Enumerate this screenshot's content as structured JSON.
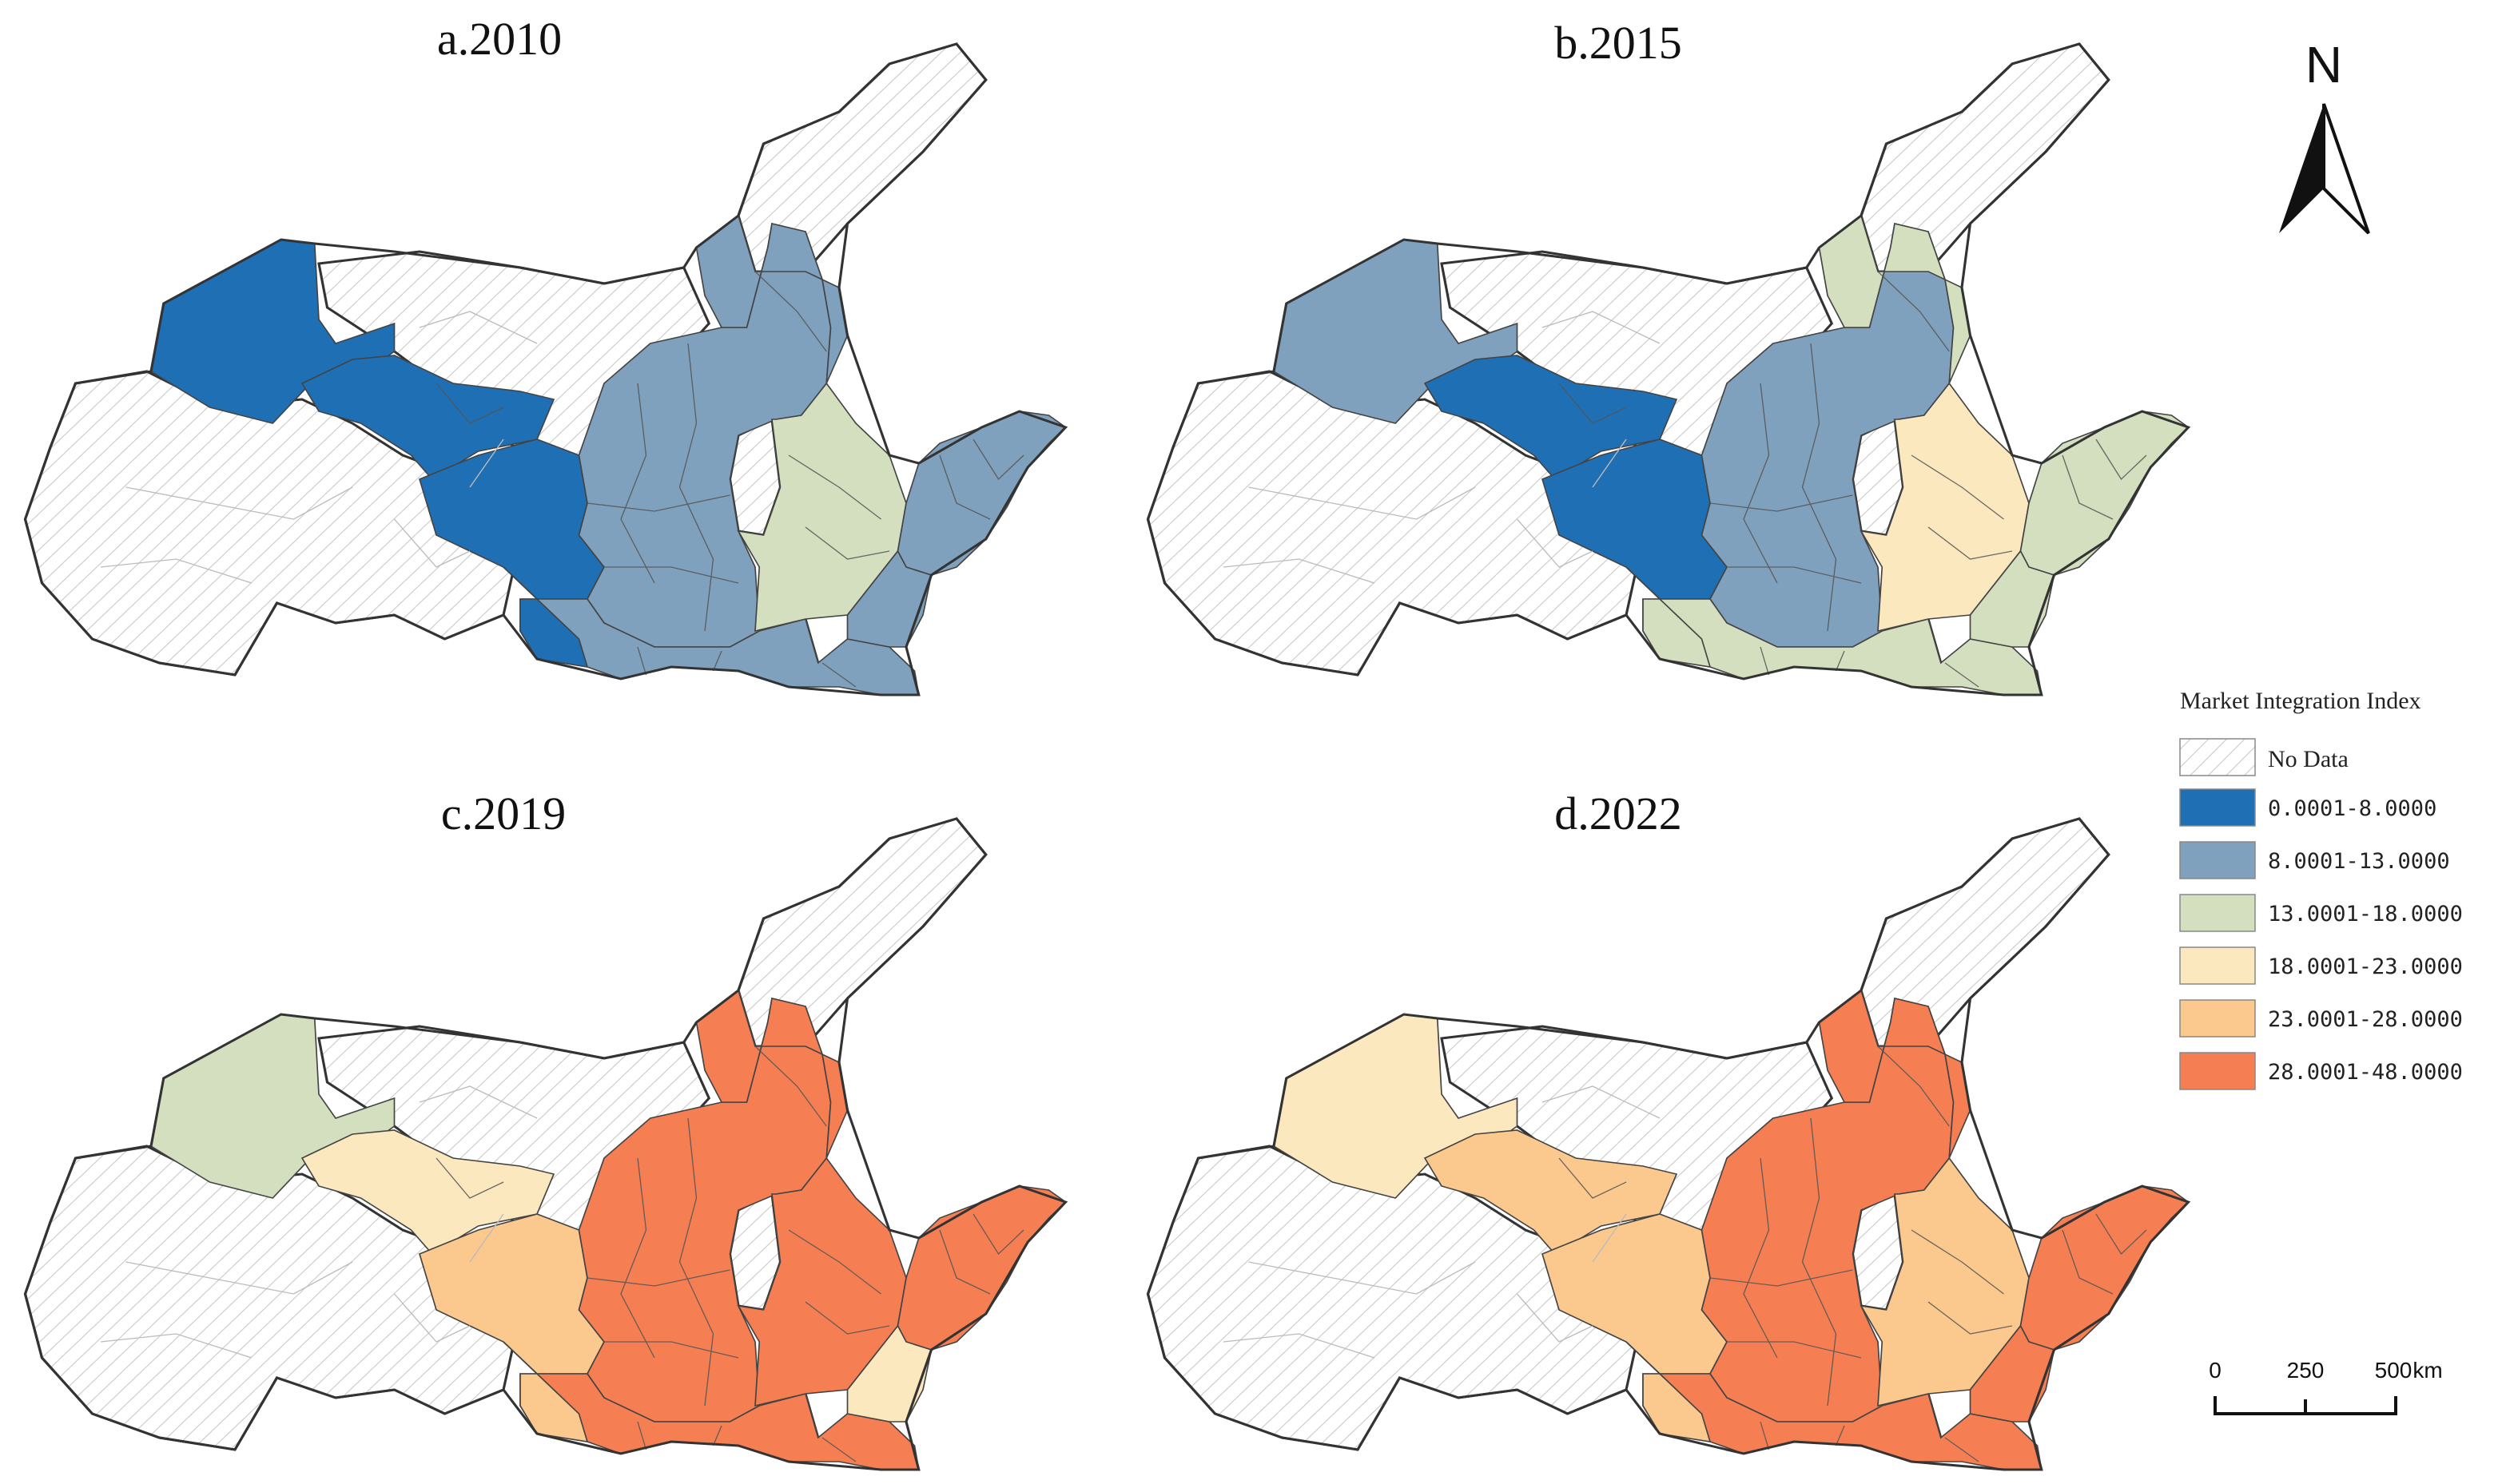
{
  "panels": [
    {
      "title": "a.2010",
      "zones": {
        "W": 1,
        "G1": 1,
        "G2": 1,
        "C": 2,
        "N": 2,
        "S": 2,
        "E1": 3,
        "E2": 2,
        "SE": 2,
        "SP": 1
      }
    },
    {
      "title": "b.2015",
      "zones": {
        "W": 2,
        "G1": 1,
        "G2": 1,
        "C": 2,
        "N": 3,
        "S": 3,
        "E1": 4,
        "E2": 3,
        "SE": 3,
        "SP": 3
      }
    },
    {
      "title": "c.2019",
      "zones": {
        "W": 3,
        "G1": 4,
        "G2": 5,
        "C": 6,
        "N": 6,
        "S": 6,
        "E1": 6,
        "E2": 6,
        "SE": 4,
        "SP": 5
      }
    },
    {
      "title": "d.2022",
      "zones": {
        "W": 4,
        "G1": 5,
        "G2": 5,
        "C": 6,
        "N": 6,
        "S": 6,
        "E1": 5,
        "E2": 6,
        "SE": 6,
        "SP": 5
      }
    }
  ],
  "legend": {
    "title": "Market Integration Index",
    "no_data_label": "No Data",
    "classes": [
      {
        "label": "0.0001-8.0000",
        "color": "#1f6fb4"
      },
      {
        "label": "8.0001-13.0000",
        "color": "#7fa1bd"
      },
      {
        "label": "13.0001-18.0000",
        "color": "#d3dfbe"
      },
      {
        "label": "18.0001-23.0000",
        "color": "#fce8bf"
      },
      {
        "label": "23.0001-28.0000",
        "color": "#fbc98d"
      },
      {
        "label": "28.0001-48.0000",
        "color": "#f57f53"
      }
    ]
  },
  "north_arrow": {
    "label": "N"
  },
  "scale_bar": {
    "ticks": [
      "0",
      "250",
      "500"
    ],
    "unit": "km"
  }
}
